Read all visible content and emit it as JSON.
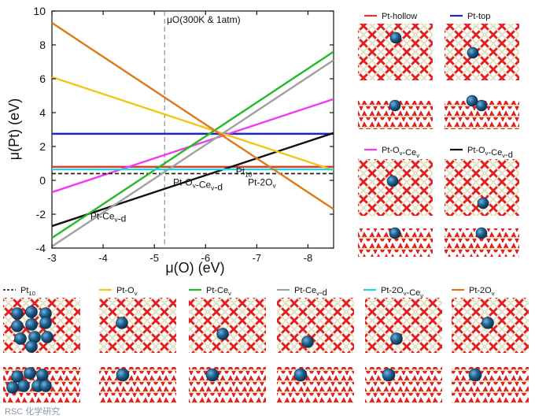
{
  "chart_data": {
    "type": "line",
    "title": "",
    "xlabel": "μ(O) (eV)",
    "ylabel": "μ(Pt) (eV)",
    "xlim": [
      -3,
      -8.5
    ],
    "ylim": [
      -4,
      10
    ],
    "x_ticks": [
      "-3",
      "-4",
      "-5",
      "-6",
      "-7",
      "-8"
    ],
    "y_ticks": [
      "-4",
      "-2",
      "0",
      "2",
      "4",
      "6",
      "8",
      "10"
    ],
    "reference_line": {
      "x": -5.2,
      "label": "μO(300K & 1atm)"
    },
    "series": [
      {
        "name": "Pt-hollow",
        "color": "#e03a2c",
        "x": [
          -3,
          -8.5
        ],
        "y": [
          0.8,
          0.8
        ]
      },
      {
        "name": "Pt-top",
        "color": "#1f24c4",
        "x": [
          -3,
          -8.5
        ],
        "y": [
          2.75,
          2.75
        ]
      },
      {
        "name": "Pt-Ov-Cev",
        "color": "#f03cf0",
        "x": [
          -3,
          -8.5
        ],
        "y": [
          -0.7,
          4.8
        ]
      },
      {
        "name": "Pt-Ov-Cev-d",
        "color": "#111111",
        "x": [
          -3,
          -8.5
        ],
        "y": [
          -2.7,
          2.8
        ]
      },
      {
        "name": "Pt10",
        "color": "#111111",
        "dashed": true,
        "x": [
          -3,
          -8.5
        ],
        "y": [
          0.4,
          0.4
        ]
      },
      {
        "name": "Pt-Ov",
        "color": "#f5c518",
        "x": [
          -3,
          -8.5
        ],
        "y": [
          6.1,
          0.6
        ]
      },
      {
        "name": "Pt-Cev",
        "color": "#22bb22",
        "x": [
          -3,
          -8.5
        ],
        "y": [
          -3.4,
          7.6
        ]
      },
      {
        "name": "Pt-Cev-d",
        "color": "#a0a0a0",
        "x": [
          -3,
          -8.5
        ],
        "y": [
          -3.9,
          7.1
        ]
      },
      {
        "name": "Pt-2Ov-Cev",
        "color": "#22d8e0",
        "x": [
          -3,
          -8.5
        ],
        "y": [
          0.65,
          0.65
        ]
      },
      {
        "name": "Pt-2Ov",
        "color": "#e07818",
        "x": [
          -3,
          -8.5
        ],
        "y": [
          9.3,
          -1.7
        ]
      }
    ],
    "annotations": [
      {
        "text": "Pt-Cev-d",
        "x": -4.1,
        "y": -2.3
      },
      {
        "text": "Pt-Ov-Cev-d",
        "x": -5.85,
        "y": -0.3
      },
      {
        "text": "Pt10",
        "x": -6.75,
        "y": 0.35
      },
      {
        "text": "Pt-2Ov",
        "x": -7.1,
        "y": -0.3
      }
    ]
  },
  "legend": [
    {
      "label": "Pt-hollow",
      "color": "#e03a2c",
      "dashed": false
    },
    {
      "label": "Pt-top",
      "color": "#1f24c4",
      "dashed": false
    },
    {
      "label": "Pt-Ov-Cev",
      "color": "#f03cf0",
      "dashed": false
    },
    {
      "label": "Pt-Ov-Cev-d",
      "color": "#111111",
      "dashed": false
    },
    {
      "label": "Pt10",
      "color": "#111111",
      "dashed": true
    },
    {
      "label": "Pt-Ov",
      "color": "#f5c518",
      "dashed": false
    },
    {
      "label": "Pt-Cev",
      "color": "#22bb22",
      "dashed": false
    },
    {
      "label": "Pt-Cev-d",
      "color": "#a0a0a0",
      "dashed": false
    },
    {
      "label": "Pt-2Ov-Cev",
      "color": "#22d8e0",
      "dashed": false
    },
    {
      "label": "Pt-2Ov",
      "color": "#e07818",
      "dashed": false
    }
  ],
  "colors": {
    "oxygen": "#e02020",
    "cerium": "#e6e0c0",
    "platinum": "#1e5f8a",
    "bond": "#c89090"
  },
  "watermark": "RSC 化学研究"
}
